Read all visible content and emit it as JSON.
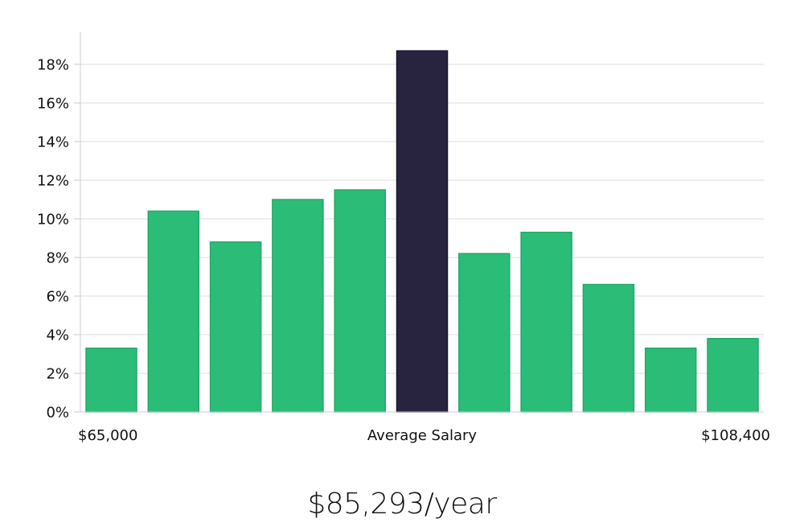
{
  "chart_data": {
    "type": "bar",
    "values": [
      3.3,
      10.4,
      8.8,
      11.0,
      11.5,
      18.7,
      8.2,
      9.3,
      6.6,
      3.3,
      3.8
    ],
    "highlight_index": 5,
    "ylim": [
      0,
      20
    ],
    "yticks": [
      0,
      2,
      4,
      6,
      8,
      10,
      12,
      14,
      16,
      18
    ],
    "ytick_suffix": "%",
    "x_labels": {
      "left": "$65,000",
      "center": "Average Salary",
      "right": "$108,400"
    },
    "grid": true,
    "colors": {
      "bar": "#2bbd78",
      "bar_edge": "#22a868",
      "highlight": "#28233f",
      "highlight_edge": "#1a1633",
      "grid": "#dedede",
      "axis": "#cccccc"
    }
  },
  "average_salary": "$85,293/year"
}
